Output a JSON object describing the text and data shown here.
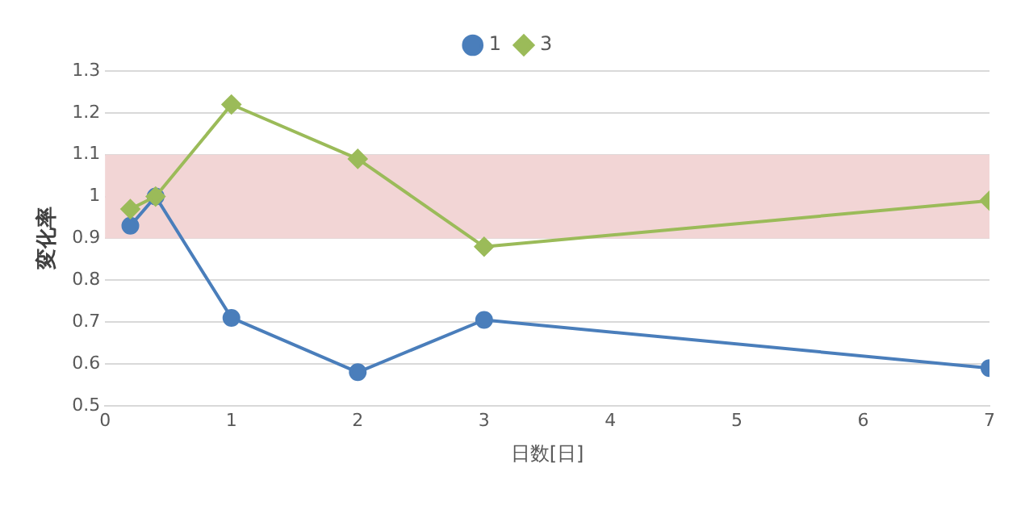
{
  "chart_data": {
    "type": "line",
    "xlabel": "日数[日]",
    "ylabel": "変化率",
    "x": [
      0.2,
      0.4,
      1,
      2,
      3,
      7
    ],
    "series": [
      {
        "name": "1",
        "color": "#4a7ebb",
        "marker": "circle",
        "values": [
          0.93,
          1.0,
          0.71,
          0.58,
          0.705,
          0.59
        ]
      },
      {
        "name": "3",
        "color": "#9bbb59",
        "marker": "diamond",
        "values": [
          0.97,
          1.0,
          1.22,
          1.09,
          0.88,
          0.99
        ]
      }
    ],
    "xlim": [
      0,
      7
    ],
    "xticks": [
      0,
      1,
      2,
      3,
      4,
      5,
      6,
      7
    ],
    "ylim": [
      0.5,
      1.3
    ],
    "yticks": [
      0.5,
      0.6,
      0.7,
      0.8,
      0.9,
      1,
      1.1,
      1.2,
      1.3
    ],
    "bands": [
      {
        "axis": "y",
        "from": 0.9,
        "to": 1.1,
        "color": "#f2d5d5"
      }
    ],
    "grid": "y",
    "legend": "top"
  }
}
